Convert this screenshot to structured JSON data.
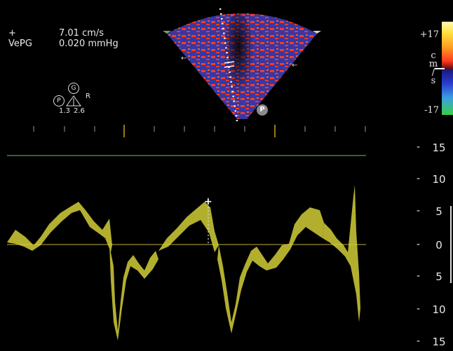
{
  "measurement": {
    "vel_label": "+ Vel",
    "vel_value": "7.01 cm/s",
    "pg_label": "PG",
    "pg_value": "0.020 mmHg"
  },
  "probe_marker": {
    "top_symbol": "G",
    "left_symbol": "P",
    "right_label": "R",
    "value_left": "1.3",
    "value_right": "2.6"
  },
  "sector_marker": "P",
  "color_bar": {
    "max_label": "+17",
    "min_label": "-17",
    "unit_chars": [
      "c",
      "m",
      "/",
      "s"
    ]
  },
  "spectral_scale": {
    "labels": [
      "15",
      "10",
      "5",
      "0",
      "5",
      "10",
      "15"
    ]
  },
  "colors": {
    "doppler_trace": "#d9d43a",
    "baseline": "#9a8a30",
    "top_line": "#4fa04a",
    "color_flow_red": "#ff3b1f",
    "color_flow_blue": "#3a3ab8"
  }
}
